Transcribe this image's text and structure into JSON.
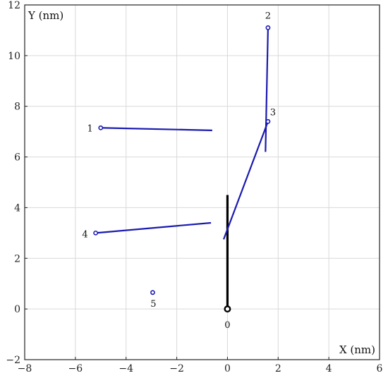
{
  "chart_data": {
    "type": "scatter",
    "xlabel": "X (nm)",
    "ylabel": "Y (nm)",
    "xlim": [
      -8,
      6
    ],
    "ylim": [
      -2,
      12
    ],
    "x_ticks": [
      "−8",
      "−6",
      "−4",
      "−2",
      "0",
      "2",
      "4",
      "6"
    ],
    "y_ticks": [
      "−2",
      "0",
      "2",
      "4",
      "6",
      "8",
      "10",
      "12"
    ],
    "x_tick_values": [
      -8,
      -6,
      -4,
      -2,
      0,
      2,
      4,
      6
    ],
    "y_tick_values": [
      -2,
      0,
      2,
      4,
      6,
      8,
      10,
      12
    ],
    "grid": true,
    "points": [
      {
        "label": "0",
        "x": 0.0,
        "y": 0.0,
        "line_to": [
          0.0,
          4.5
        ],
        "color": "#000000"
      },
      {
        "label": "1",
        "x": -5.0,
        "y": 7.15,
        "line_to": [
          -0.6,
          7.05
        ],
        "color": "#1a1ab0"
      },
      {
        "label": "2",
        "x": 1.6,
        "y": 11.1,
        "line_to": [
          1.5,
          6.2
        ],
        "color": "#1a1ab0"
      },
      {
        "label": "3",
        "x": 1.6,
        "y": 7.4,
        "line_to": [
          -0.15,
          2.75
        ],
        "color": "#1a1ab0"
      },
      {
        "label": "4",
        "x": -5.2,
        "y": 3.0,
        "line_to": [
          -0.65,
          3.4
        ],
        "color": "#1a1ab0"
      },
      {
        "label": "5",
        "x": -2.95,
        "y": 0.65,
        "line_to": null,
        "color": "#1a1ab0"
      }
    ]
  }
}
